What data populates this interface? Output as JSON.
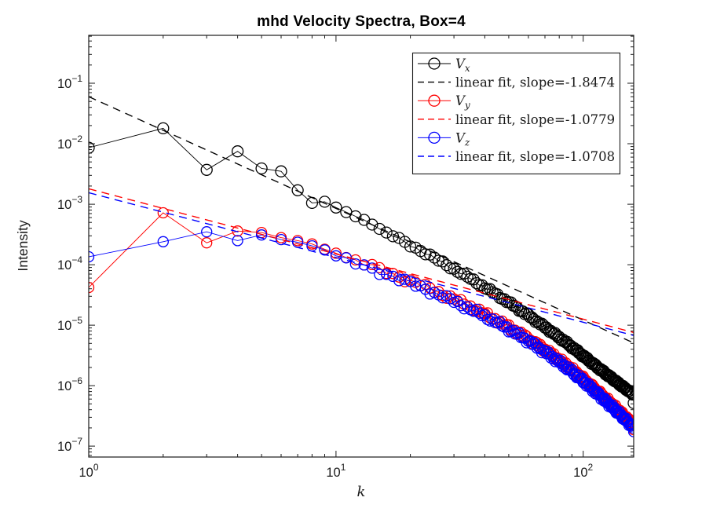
{
  "chart_data": {
    "type": "line",
    "title": "mhd Velocity Spectra, Box=4",
    "xlabel": "k",
    "ylabel": "Intensity",
    "xscale": "log",
    "yscale": "log",
    "xlim": [
      1,
      160
    ],
    "ylim": [
      6.6e-08,
      0.62
    ],
    "grid": false,
    "colors": {
      "axis": "#1a1a1a",
      "background": "#ffffff",
      "vx": "#000000",
      "vy": "#ff0000",
      "vz": "#0000ff"
    },
    "x_ticks": {
      "major": [
        1,
        10,
        100
      ],
      "labels": [
        {
          "base": "10",
          "exp": "0"
        },
        {
          "base": "10",
          "exp": "1"
        },
        {
          "base": "10",
          "exp": "2"
        }
      ]
    },
    "y_ticks": {
      "major": [
        0.1,
        0.01,
        0.001,
        0.0001,
        1e-05,
        1e-06,
        1e-07
      ],
      "labels": [
        {
          "base": "10",
          "exp": "−1"
        },
        {
          "base": "10",
          "exp": "−2"
        },
        {
          "base": "10",
          "exp": "−3"
        },
        {
          "base": "10",
          "exp": "−4"
        },
        {
          "base": "10",
          "exp": "−5"
        },
        {
          "base": "10",
          "exp": "−6"
        },
        {
          "base": "10",
          "exp": "−7"
        }
      ]
    },
    "series": [
      {
        "name": "V_x",
        "label_base": "V",
        "label_sub": "x",
        "color": "#000000",
        "marker": "circle",
        "marker_radius": 7,
        "points": [
          [
            1,
            0.0086
          ],
          [
            2,
            0.018
          ],
          [
            3,
            0.0037
          ],
          [
            4,
            0.0075
          ],
          [
            5,
            0.0039
          ],
          [
            6,
            0.0035
          ],
          [
            7,
            0.0017
          ],
          [
            8,
            0.00105
          ],
          [
            9,
            0.0011
          ],
          [
            10,
            0.00088
          ],
          [
            11,
            0.00074
          ],
          [
            12,
            0.00063
          ],
          [
            13,
            0.00055
          ],
          [
            14,
            0.00046
          ],
          [
            15,
            0.00039
          ],
          [
            16,
            0.00034
          ]
        ],
        "tail_model": {
          "k_start": 17,
          "k_end": 160,
          "amp": 0.075,
          "slope": -1.85,
          "cutoff": 60,
          "floor": 2.8e-07,
          "jitter": 0.04,
          "phase": 0,
          "last_point_factor": 0.72
        }
      },
      {
        "name": "V_y",
        "label_base": "V",
        "label_sub": "y",
        "color": "#ff0000",
        "marker": "circle",
        "marker_radius": 6.5,
        "points": [
          [
            1,
            4.2e-05
          ],
          [
            2,
            0.00072
          ],
          [
            3,
            0.00023
          ],
          [
            4,
            0.00036
          ],
          [
            5,
            0.00034
          ],
          [
            6,
            0.00028
          ],
          [
            7,
            0.00025
          ],
          [
            8,
            0.00022
          ],
          [
            9,
            0.00018
          ],
          [
            10,
            0.000155
          ]
        ],
        "tail_model": {
          "k_start": 11,
          "k_end": 160,
          "amp": 0.0024,
          "slope": -1.1,
          "cutoff": 40,
          "floor": 6e-08,
          "jitter": 0.07,
          "phase": 2.1,
          "last_point_factor": 0.85
        }
      },
      {
        "name": "V_z",
        "label_base": "V",
        "label_sub": "z",
        "color": "#0000ff",
        "marker": "circle",
        "marker_radius": 6.5,
        "points": [
          [
            1,
            0.000135
          ],
          [
            2,
            0.00024
          ],
          [
            3,
            0.00035
          ],
          [
            4,
            0.00025
          ],
          [
            5,
            0.00031
          ],
          [
            6,
            0.00026
          ],
          [
            7,
            0.000235
          ],
          [
            8,
            0.000205
          ],
          [
            9,
            0.000175
          ],
          [
            10,
            0.00014
          ]
        ],
        "tail_model": {
          "k_start": 11,
          "k_end": 160,
          "amp": 0.0022,
          "slope": -1.1,
          "cutoff": 40,
          "floor": 5e-08,
          "jitter": 0.07,
          "phase": 4.0,
          "last_point_factor": 0.85
        }
      }
    ],
    "fits": [
      {
        "label": "linear fit, slope=-1.8474",
        "slope": -1.8474,
        "value_at_k1": 0.06,
        "color": "#000000"
      },
      {
        "label": "linear fit, slope=-1.0779",
        "slope": -1.0779,
        "value_at_k1": 0.0018,
        "color": "#ff0000"
      },
      {
        "label": "linear fit, slope=-1.0708",
        "slope": -1.0708,
        "value_at_k1": 0.00155,
        "color": "#0000ff"
      }
    ],
    "legend": {
      "position": "top-right",
      "entries": [
        {
          "kind": "series",
          "base": "V",
          "sub": "x",
          "color": "#000000"
        },
        {
          "kind": "fit",
          "text": "linear fit, slope=-1.8474",
          "color": "#000000"
        },
        {
          "kind": "series",
          "base": "V",
          "sub": "y",
          "color": "#ff0000"
        },
        {
          "kind": "fit",
          "text": "linear fit, slope=-1.0779",
          "color": "#ff0000"
        },
        {
          "kind": "series",
          "base": "V",
          "sub": "z",
          "color": "#0000ff"
        },
        {
          "kind": "fit",
          "text": "linear fit, slope=-1.0708",
          "color": "#0000ff"
        }
      ]
    }
  }
}
